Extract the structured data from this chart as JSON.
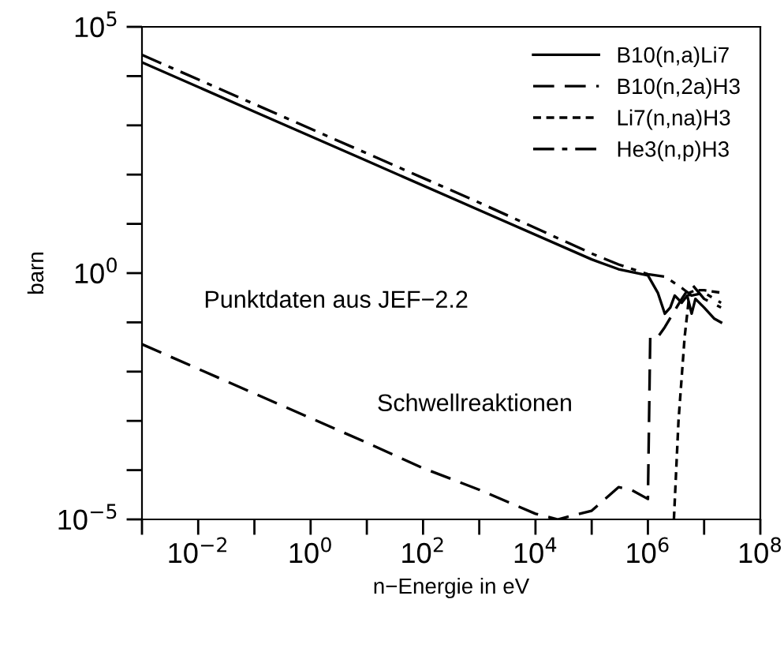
{
  "chart_data": {
    "type": "line",
    "xlabel": "n−Energie in eV",
    "ylabel": "barn",
    "log": "xy",
    "grid": false,
    "legend": "top right",
    "xlim": [
      0.001,
      100000000
    ],
    "ylim": [
      1e-05,
      100000
    ],
    "xticks": [
      {
        "value": 0.001,
        "label": null
      },
      {
        "value": 0.01,
        "label": "10$^{−2}$"
      },
      {
        "value": 0.1,
        "label": null
      },
      {
        "value": 1,
        "label": "10$^{0}$"
      },
      {
        "value": 10,
        "label": null
      },
      {
        "value": 100,
        "label": "10$^{2}$"
      },
      {
        "value": 1000,
        "label": null
      },
      {
        "value": 10000,
        "label": "10$^{4}$"
      },
      {
        "value": 100000,
        "label": null
      },
      {
        "value": 1000000,
        "label": "10$^{6}$"
      },
      {
        "value": 10000000,
        "label": null
      },
      {
        "value": 100000000,
        "label": "10$^{8}$"
      }
    ],
    "yticks": [
      {
        "value": 1e-05,
        "label": "10$^{−5}$"
      },
      {
        "value": 0.0001,
        "label": null
      },
      {
        "value": 0.001,
        "label": null
      },
      {
        "value": 0.01,
        "label": null
      },
      {
        "value": 0.1,
        "label": null
      },
      {
        "value": 1,
        "label": "10$^{0}$"
      },
      {
        "value": 10,
        "label": null
      },
      {
        "value": 100,
        "label": null
      },
      {
        "value": 1000,
        "label": null
      },
      {
        "value": 10000,
        "label": null
      },
      {
        "value": 100000,
        "label": "10$^{5}$"
      }
    ],
    "annotations": [
      "Punktdaten aus JEF−2.2",
      "Schwellreaktionen"
    ],
    "series": [
      {
        "name": "B10(n,a)Li7",
        "color": "#000000",
        "line_style": "solid",
        "x": [
          0.001,
          0.1,
          10,
          1000,
          100000,
          300000,
          1000000,
          1500000,
          2000000,
          2500000,
          3000000,
          4000000,
          5000000,
          6000000,
          7000000,
          10000000,
          15000000,
          20000000
        ],
        "values": [
          19000,
          1900,
          190,
          19,
          1.9,
          1.2,
          0.9,
          0.4,
          0.15,
          0.2,
          0.35,
          0.25,
          0.35,
          0.15,
          0.3,
          0.2,
          0.12,
          0.1
        ]
      },
      {
        "name": "B10(n,2a)H3",
        "color": "#000000",
        "line_style": "dashed",
        "x": [
          0.001,
          0.1,
          10,
          100,
          1000,
          10000,
          25000,
          100000,
          300000,
          500000,
          1000000,
          1100000,
          1500000,
          2000000,
          4000000,
          6000000,
          10000000,
          20000000
        ],
        "values": [
          0.036,
          0.0036,
          0.00036,
          0.00011,
          4e-05,
          1.3e-05,
          1e-05,
          1.5e-05,
          4.5e-05,
          4e-05,
          2.6e-05,
          0.05,
          0.05,
          0.08,
          0.3,
          0.6,
          0.3,
          0.2
        ]
      },
      {
        "name": "Li7(n,na)H3",
        "color": "#000000",
        "line_style": "dotted",
        "x": [
          2900000,
          3500000,
          4500000,
          5500000,
          7000000,
          10000000,
          20000000
        ],
        "values": [
          1e-05,
          0.001,
          0.05,
          0.4,
          0.45,
          0.45,
          0.4
        ]
      },
      {
        "name": "He3(n,p)H3",
        "color": "#000000",
        "line_style": "dashdot",
        "x": [
          0.001,
          0.1,
          10,
          1000,
          100000,
          300000,
          1000000,
          2000000,
          4000000,
          6000000,
          10000000,
          20000000
        ],
        "values": [
          27000,
          2700,
          270,
          27,
          2.5,
          1.5,
          0.95,
          0.85,
          0.5,
          0.35,
          0.4,
          0.25
        ]
      }
    ]
  }
}
